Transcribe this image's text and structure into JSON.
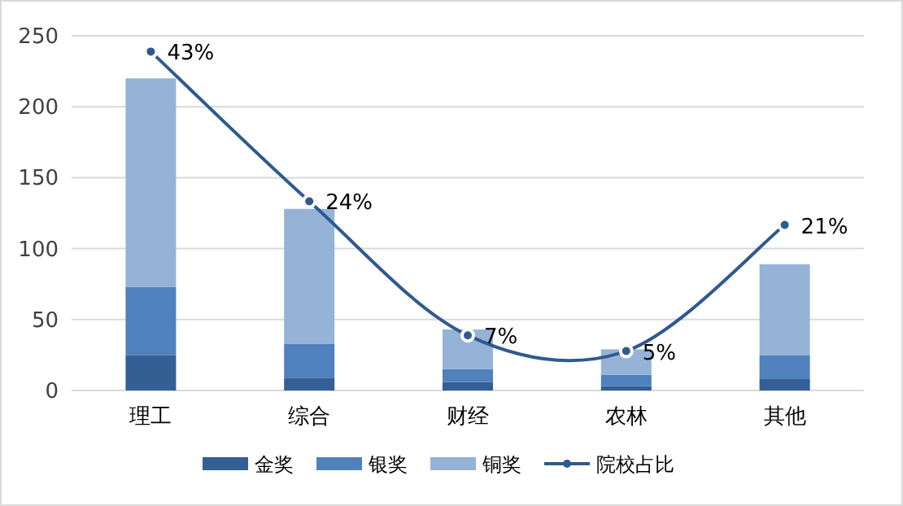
{
  "chart_data": {
    "type": "bar",
    "stacked": true,
    "categories": [
      "理工",
      "综合",
      "财经",
      "农林",
      "其他"
    ],
    "series": [
      {
        "name": "金奖",
        "color": "#335f94",
        "values": [
          25,
          9,
          6,
          3,
          8
        ]
      },
      {
        "name": "银奖",
        "color": "#4f81bd",
        "values": [
          48,
          24,
          9,
          8,
          17
        ]
      },
      {
        "name": "铜奖",
        "color": "#95b3d7",
        "values": [
          147,
          95,
          28,
          18,
          64
        ]
      },
      {
        "name": "院校占比",
        "type": "line",
        "axis": "y2",
        "color": "#2e5a8e",
        "marker": "circle",
        "values": [
          43,
          24,
          7,
          5,
          21
        ],
        "value_labels": [
          "43%",
          "24%",
          "7%",
          "5%",
          "21%"
        ]
      }
    ],
    "ylim": [
      0,
      250
    ],
    "yticks": [
      0,
      50,
      100,
      150,
      200,
      250
    ],
    "y2lim": [
      0,
      45
    ],
    "grid": "y",
    "legend": "bottom"
  }
}
